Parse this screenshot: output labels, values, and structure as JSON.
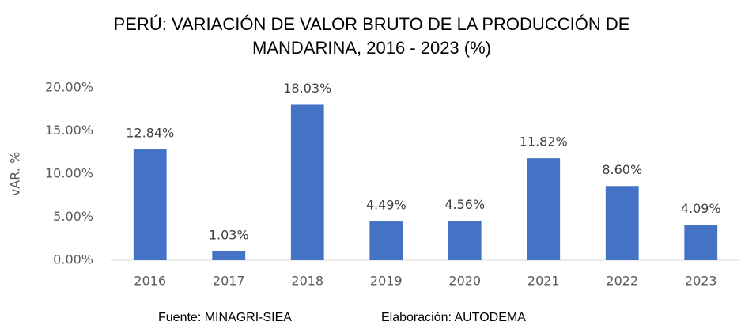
{
  "chart_data": {
    "type": "bar",
    "title": [
      "PERÚ: VARIACIÓN DE VALOR BRUTO DE LA PRODUCCIÓN DE",
      "MANDARINA, 2016 - 2023 (%)"
    ],
    "y_label": "vAR. %",
    "categories": [
      "2016",
      "2017",
      "2018",
      "2019",
      "2020",
      "2021",
      "2022",
      "2023"
    ],
    "values": [
      12.84,
      1.03,
      18.03,
      4.49,
      4.56,
      11.82,
      8.6,
      4.09
    ],
    "value_labels": [
      "12.84%",
      "1.03%",
      "18.03%",
      "4.49%",
      "4.56%",
      "11.82%",
      "8.60%",
      "4.09%"
    ],
    "color": "#4472c4",
    "ylim": [
      0,
      20
    ],
    "yticks": [
      {
        "value": 0,
        "label": "0.00%"
      },
      {
        "value": 5,
        "label": "5.00%"
      },
      {
        "value": 10,
        "label": "10.00%"
      },
      {
        "value": 15,
        "label": "15.00%"
      },
      {
        "value": 20,
        "label": "20.00%"
      }
    ],
    "grid": false,
    "source": "Fuente: MINAGRI-SIEA",
    "credit": "Elaboración: AUTODEMA"
  }
}
